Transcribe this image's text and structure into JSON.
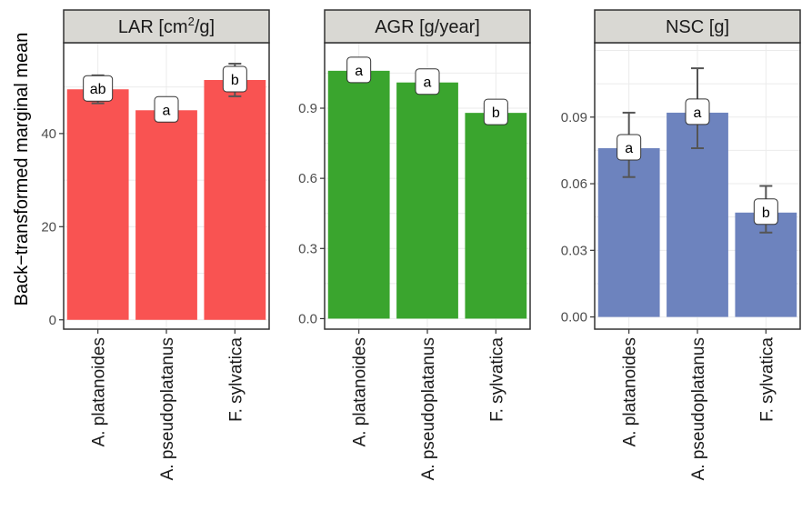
{
  "ylabel": "Back−transformed marginal mean",
  "colors": {
    "LAR": "#f95352",
    "AGR": "#3aa52e",
    "NSC": "#6d83be",
    "strip_bg": "#d9d8d3",
    "grid": "#ebebeb",
    "error_bar": "#555555"
  },
  "chart_data": [
    {
      "type": "bar",
      "title": "LAR [cm²/g]",
      "title_base": "LAR [cm",
      "title_sup": "2",
      "title_tail": "/g]",
      "categories": [
        "A. platanoides",
        "A. pseudoplatanus",
        "F. sylvatica"
      ],
      "values": [
        49.5,
        45.0,
        51.5
      ],
      "error_low": [
        46.5,
        43.0,
        48.0
      ],
      "error_high": [
        52.5,
        47.5,
        55.0
      ],
      "labels": [
        "ab",
        "a",
        "b"
      ],
      "ylim": [
        -2,
        59.5
      ],
      "yticks": [
        0,
        20,
        40
      ],
      "ytick_labels": [
        "0",
        "20",
        "40"
      ],
      "grid": true
    },
    {
      "type": "bar",
      "title": "AGR [g/year]",
      "categories": [
        "A. platanoides",
        "A. pseudoplatanus",
        "F. sylvatica"
      ],
      "values": [
        1.06,
        1.01,
        0.88
      ],
      "error_low": [
        null,
        null,
        null
      ],
      "error_high": [
        null,
        null,
        null
      ],
      "labels": [
        "a",
        "a",
        "b"
      ],
      "ylim": [
        -0.045,
        1.18
      ],
      "yticks": [
        0.0,
        0.3,
        0.6,
        0.9
      ],
      "ytick_labels": [
        "0.0",
        "0.3",
        "0.6",
        "0.9"
      ],
      "grid": true
    },
    {
      "type": "bar",
      "title": "NSC [g]",
      "categories": [
        "A. platanoides",
        "A. pseudoplatanus",
        "F. sylvatica"
      ],
      "values": [
        0.076,
        0.092,
        0.047
      ],
      "error_low": [
        0.063,
        0.076,
        0.038
      ],
      "error_high": [
        0.092,
        0.112,
        0.059
      ],
      "labels": [
        "a",
        "a",
        "b"
      ],
      "ylim": [
        -0.0055,
        0.1235
      ],
      "yticks": [
        0.0,
        0.03,
        0.06,
        0.09
      ],
      "ytick_labels": [
        "0.00",
        "0.03",
        "0.06",
        "0.09"
      ],
      "grid": true
    }
  ]
}
